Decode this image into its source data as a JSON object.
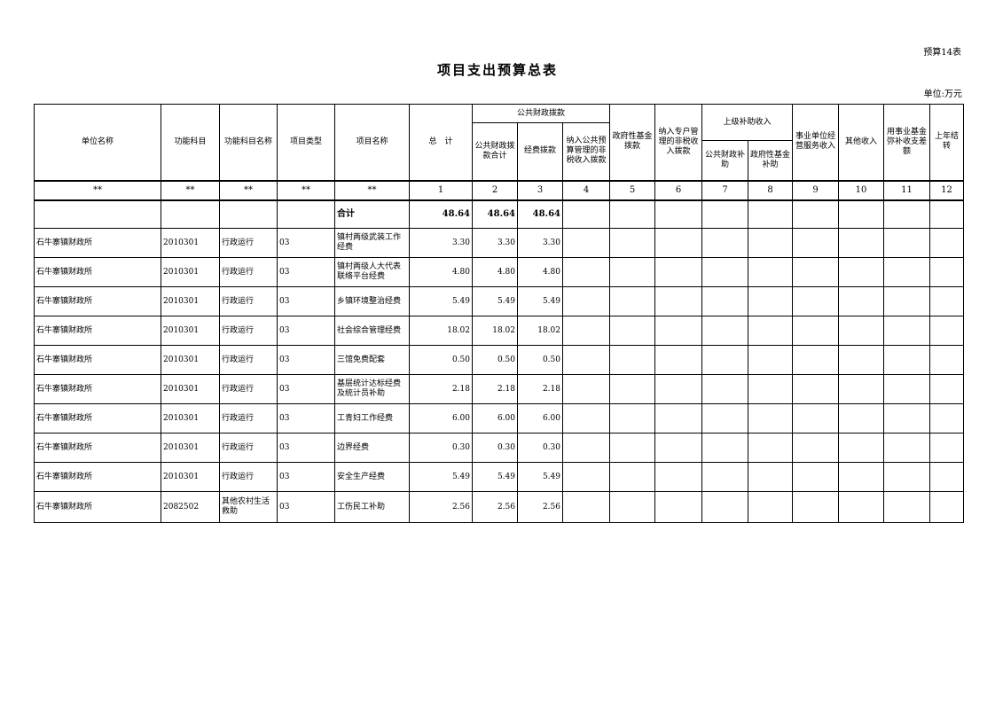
{
  "page": {
    "sheet_label": "预算14表",
    "title": "项目支出预算总表",
    "unit_note": "单位:万元"
  },
  "table": {
    "headers": {
      "unit_name": "单位名称",
      "function_code": "功能科目",
      "function_name": "功能科目名称",
      "project_type": "项目类型",
      "project_name": "项目名称",
      "grand_total": "总　计",
      "public_finance_group": "公共财政拨款",
      "public_finance_total": "公共财政拨款合计",
      "funds_allocation": "经费拨款",
      "nontax_public_budget": "纳入公共预算管理的非税收入拨款",
      "gov_fund_allocation": "政府性基金拨款",
      "special_account_nontax": "纳入专户管理的非税收入拨款",
      "superior_subsidy_group": "上级补助收入",
      "superior_public_finance": "公共财政补助",
      "superior_gov_fund": "政府性基金补助",
      "business_service_income": "事业单位经营服务收入",
      "other_income": "其他收入",
      "fund_offset_balance": "用事业基金弥补收支差额",
      "prev_year_carryover": "上年结转"
    },
    "code_row": [
      "**",
      "**",
      "**",
      "**",
      "**",
      "1",
      "2",
      "3",
      "4",
      "5",
      "6",
      "7",
      "8",
      "9",
      "10",
      "11",
      "12"
    ],
    "total_row": {
      "label": "合计",
      "total": "48.64",
      "pf_total": "48.64",
      "funds": "48.64"
    },
    "rows": [
      {
        "unit": "石牛寨镇财政所",
        "code": "2010301",
        "func": "行政运行",
        "type": "03",
        "project": "镇村两级武装工作经费",
        "total": "3.30",
        "pf_total": "3.30",
        "funds": "3.30"
      },
      {
        "unit": "石牛寨镇财政所",
        "code": "2010301",
        "func": "行政运行",
        "type": "03",
        "project": "镇村两级人大代表联络平台经费",
        "total": "4.80",
        "pf_total": "4.80",
        "funds": "4.80"
      },
      {
        "unit": "石牛寨镇财政所",
        "code": "2010301",
        "func": "行政运行",
        "type": "03",
        "project": "乡镇环境整治经费",
        "total": "5.49",
        "pf_total": "5.49",
        "funds": "5.49"
      },
      {
        "unit": "石牛寨镇财政所",
        "code": "2010301",
        "func": "行政运行",
        "type": "03",
        "project": "社会综合管理经费",
        "total": "18.02",
        "pf_total": "18.02",
        "funds": "18.02"
      },
      {
        "unit": "石牛寨镇财政所",
        "code": "2010301",
        "func": "行政运行",
        "type": "03",
        "project": "三馆免费配套",
        "total": "0.50",
        "pf_total": "0.50",
        "funds": "0.50"
      },
      {
        "unit": "石牛寨镇财政所",
        "code": "2010301",
        "func": "行政运行",
        "type": "03",
        "project": "基层统计达标经费及统计员补助",
        "total": "2.18",
        "pf_total": "2.18",
        "funds": "2.18"
      },
      {
        "unit": "石牛寨镇财政所",
        "code": "2010301",
        "func": "行政运行",
        "type": "03",
        "project": "工青妇工作经费",
        "total": "6.00",
        "pf_total": "6.00",
        "funds": "6.00"
      },
      {
        "unit": "石牛寨镇财政所",
        "code": "2010301",
        "func": "行政运行",
        "type": "03",
        "project": "边界经费",
        "total": "0.30",
        "pf_total": "0.30",
        "funds": "0.30"
      },
      {
        "unit": "石牛寨镇财政所",
        "code": "2010301",
        "func": "行政运行",
        "type": "03",
        "project": "安全生产经费",
        "total": "5.49",
        "pf_total": "5.49",
        "funds": "5.49"
      },
      {
        "unit": "石牛寨镇财政所",
        "code": "2082502",
        "func": "其他农村生活救助",
        "type": "03",
        "project": "工伤民工补助",
        "total": "2.56",
        "pf_total": "2.56",
        "funds": "2.56"
      }
    ]
  }
}
